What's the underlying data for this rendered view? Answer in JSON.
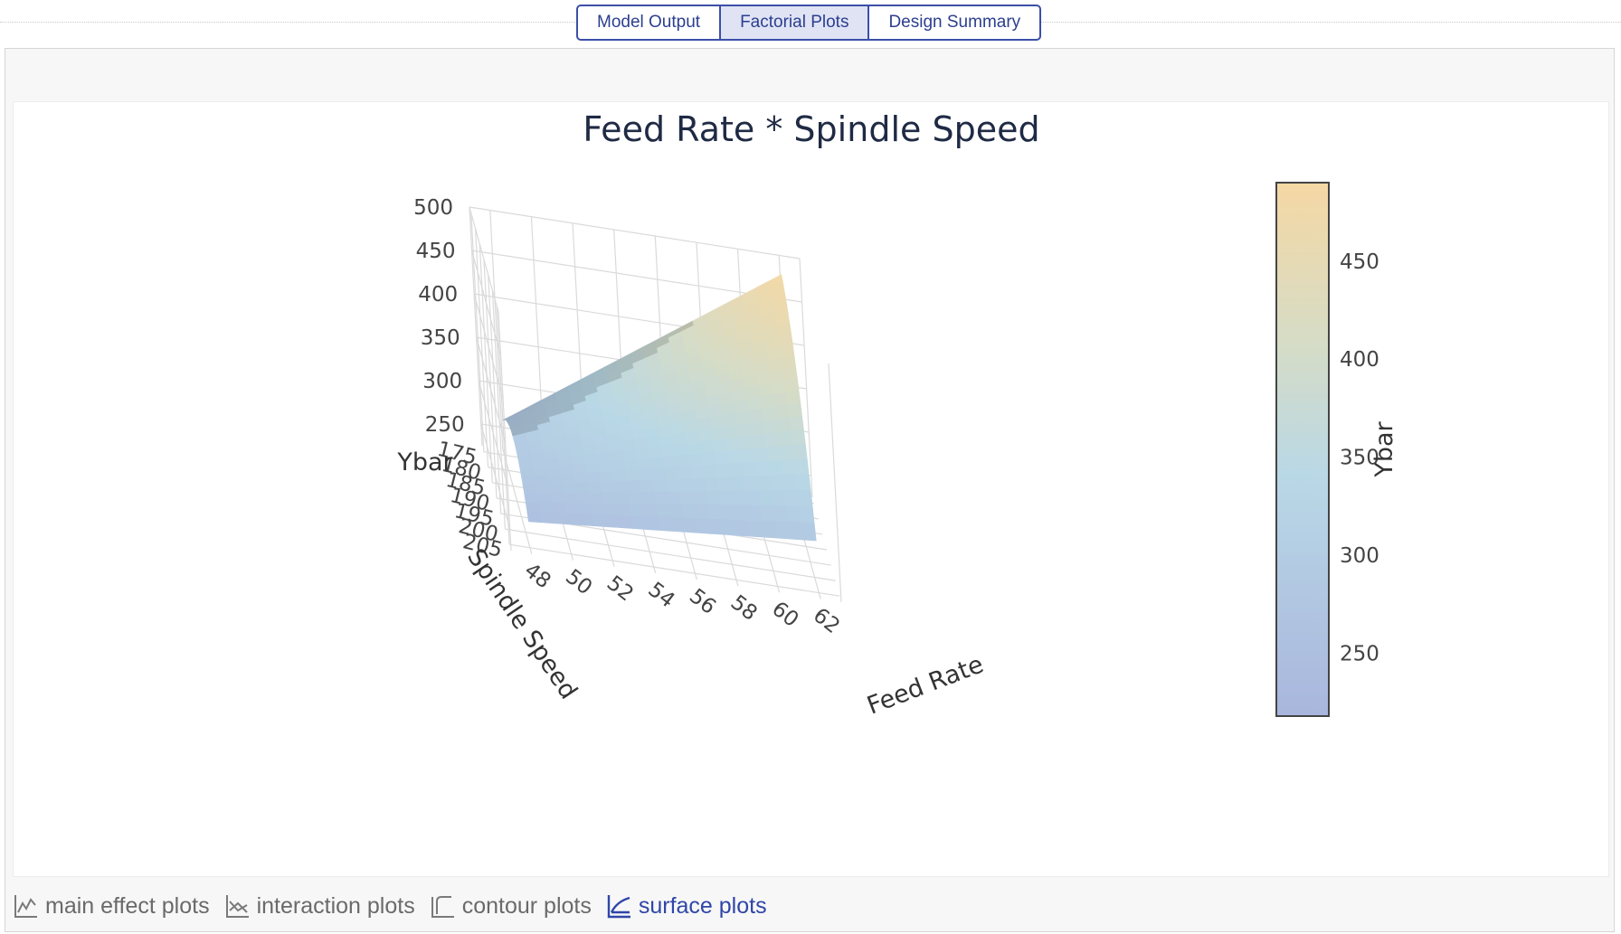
{
  "tabs": [
    {
      "label": "Model Output",
      "active": false
    },
    {
      "label": "Factorial Plots",
      "active": true
    },
    {
      "label": "Design Summary",
      "active": false
    }
  ],
  "plot_nav": [
    {
      "label": "main effect plots",
      "icon": "line-chart-icon",
      "active": false
    },
    {
      "label": "interaction plots",
      "icon": "interaction-chart-icon",
      "active": false
    },
    {
      "label": "contour plots",
      "icon": "contour-chart-icon",
      "active": false
    },
    {
      "label": "surface plots",
      "icon": "surface-chart-icon",
      "active": true
    }
  ],
  "colors": {
    "accent": "#2f46a8",
    "colorscale": [
      "#a9b6dd",
      "#b9d8e6",
      "#d6dcc6",
      "#f5d8a4"
    ]
  },
  "chart_data": {
    "type": "surface",
    "title": "Feed Rate * Spindle Speed",
    "x_axis": {
      "label": "Feed Rate",
      "ticks": [
        48,
        50,
        52,
        54,
        56,
        58,
        60,
        62
      ],
      "range": [
        47,
        63
      ]
    },
    "y_axis": {
      "label": "Spindle Speed",
      "ticks": [
        175,
        180,
        185,
        190,
        195,
        200,
        205
      ],
      "range": [
        173,
        207
      ]
    },
    "z_axis": {
      "label": "Ybar",
      "ticks": [
        250,
        300,
        350,
        400,
        450,
        500
      ],
      "range": [
        225,
        500
      ]
    },
    "colorbar": {
      "label": "Ybar",
      "ticks": [
        250,
        300,
        350,
        400,
        450
      ],
      "range": [
        218,
        490
      ]
    },
    "surface_estimate": {
      "description_points": [
        {
          "feed_rate": 48,
          "spindle_speed": 205,
          "ybar": 255
        },
        {
          "feed_rate": 48,
          "spindle_speed": 175,
          "ybar": 265
        },
        {
          "feed_rate": 62,
          "spindle_speed": 205,
          "ybar": 285
        },
        {
          "feed_rate": 62,
          "spindle_speed": 175,
          "ybar": 485
        }
      ]
    }
  }
}
